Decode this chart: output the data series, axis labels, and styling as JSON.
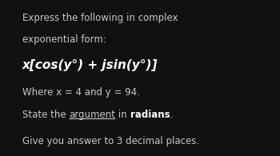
{
  "bg_color": "#111111",
  "text_color": "#c8c8c8",
  "bold_color": "#ffffff",
  "line1": "Express the following in complex",
  "line2": "exponential form:",
  "formula": "x[cos(y°) + jsin(y°)]",
  "line4": "Where x = 4 and y = 94.",
  "line5_pre": "State the ",
  "line5_underline": "argument",
  "line5_mid": " in ",
  "line5_bold": "radians",
  "line5_post": ".",
  "line6": "Give you answer to 3 decimal places.",
  "figsize": [
    3.5,
    1.95
  ],
  "dpi": 100
}
